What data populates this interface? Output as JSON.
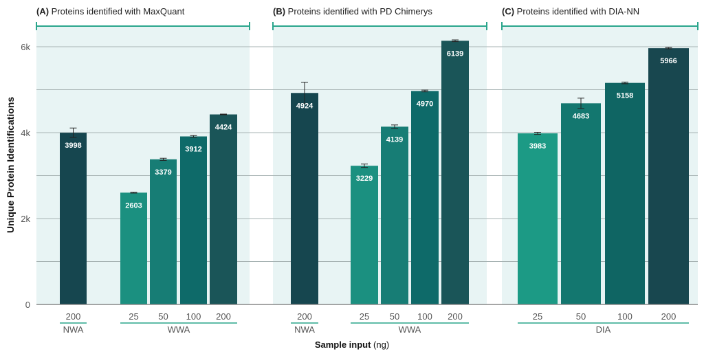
{
  "chart_data": {
    "type": "bar",
    "ylabel": "Unique Protein Identifications",
    "xlabel_bold": "Sample input",
    "xlabel_unit": "(ng)",
    "ylim": [
      0,
      6500
    ],
    "yticks": [
      0,
      2000,
      4000,
      6000
    ],
    "ytick_labels": [
      "0",
      "2k",
      "4k",
      "6k"
    ],
    "grid": true,
    "accent_color": "#2aa58c",
    "panel_background": "#e8f4f4",
    "panels": [
      {
        "tag": "(A)",
        "title": "Proteins identified with MaxQuant",
        "groups": [
          {
            "label": "NWA",
            "bars": [
              {
                "x": "200",
                "value": 3998,
                "err": 110,
                "color": "#16464f"
              }
            ]
          },
          {
            "label": "WWA",
            "bars": [
              {
                "x": "25",
                "value": 2603,
                "err": 10,
                "color": "#1b9080"
              },
              {
                "x": "50",
                "value": 3379,
                "err": 25,
                "color": "#177d75"
              },
              {
                "x": "100",
                "value": 3912,
                "err": 20,
                "color": "#0e6a69"
              },
              {
                "x": "200",
                "value": 4424,
                "err": 8,
                "color": "#1a5558"
              }
            ]
          }
        ]
      },
      {
        "tag": "(B)",
        "title": "Proteins identified with PD Chimerys",
        "groups": [
          {
            "label": "NWA",
            "bars": [
              {
                "x": "200",
                "value": 4924,
                "err": 250,
                "color": "#16464f"
              }
            ]
          },
          {
            "label": "WWA",
            "bars": [
              {
                "x": "25",
                "value": 3229,
                "err": 40,
                "color": "#1b9080"
              },
              {
                "x": "50",
                "value": 4139,
                "err": 40,
                "color": "#177d75"
              },
              {
                "x": "100",
                "value": 4970,
                "err": 20,
                "color": "#0e6a69"
              },
              {
                "x": "200",
                "value": 6139,
                "err": 20,
                "color": "#1a5558"
              }
            ]
          }
        ]
      },
      {
        "tag": "(C)",
        "title": "Proteins identified with DIA-NN",
        "groups": [
          {
            "label": "DIA",
            "bars": [
              {
                "x": "25",
                "value": 3983,
                "err": 25,
                "color": "#1c9a85"
              },
              {
                "x": "50",
                "value": 4683,
                "err": 120,
                "color": "#13776f"
              },
              {
                "x": "100",
                "value": 5158,
                "err": 20,
                "color": "#0f6563"
              },
              {
                "x": "200",
                "value": 5966,
                "err": 15,
                "color": "#18474f"
              }
            ]
          }
        ]
      }
    ]
  }
}
